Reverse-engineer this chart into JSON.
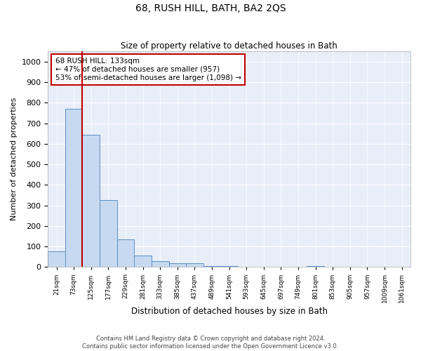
{
  "title": "68, RUSH HILL, BATH, BA2 2QS",
  "subtitle": "Size of property relative to detached houses in Bath",
  "xlabel": "Distribution of detached houses by size in Bath",
  "ylabel": "Number of detached properties",
  "bar_labels": [
    "21sqm",
    "73sqm",
    "125sqm",
    "177sqm",
    "229sqm",
    "281sqm",
    "333sqm",
    "385sqm",
    "437sqm",
    "489sqm",
    "541sqm",
    "593sqm",
    "645sqm",
    "697sqm",
    "749sqm",
    "801sqm",
    "853sqm",
    "905sqm",
    "957sqm",
    "1009sqm",
    "1061sqm"
  ],
  "bar_heights": [
    75,
    770,
    645,
    325,
    135,
    55,
    28,
    18,
    18,
    5,
    5,
    0,
    0,
    0,
    0,
    5,
    0,
    0,
    0,
    0,
    0
  ],
  "bar_color": "#c6d9f0",
  "bar_edge_color": "#5b8ec4",
  "vline_color": "#c00000",
  "annotation_text": "68 RUSH HILL: 133sqm\n← 47% of detached houses are smaller (957)\n53% of semi-detached houses are larger (1,098) →",
  "annotation_box_color": "#c00000",
  "ylim": [
    0,
    1050
  ],
  "yticks": [
    0,
    100,
    200,
    300,
    400,
    500,
    600,
    700,
    800,
    900,
    1000
  ],
  "footer_line1": "Contains HM Land Registry data © Crown copyright and database right 2024.",
  "footer_line2": "Contains public sector information licensed under the Open Government Licence v3.0.",
  "bg_color": "#ffffff",
  "plot_bg_color": "#e8eef8"
}
